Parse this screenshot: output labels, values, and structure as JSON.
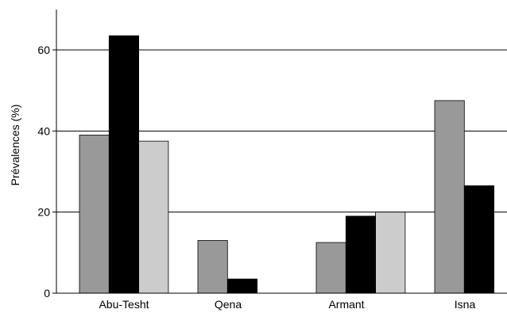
{
  "chart_data": {
    "type": "bar",
    "title": "",
    "xlabel": "",
    "ylabel": "Prévalences (%)",
    "categories": [
      "Abu-Tesht",
      "Qena",
      "Armant",
      "Isna"
    ],
    "series": [
      {
        "values": [
          39,
          13,
          12.5,
          47.5
        ],
        "color": "#999999"
      },
      {
        "values": [
          63.5,
          3.5,
          19,
          26.5
        ],
        "color": "#000000"
      },
      {
        "values": [
          37.5,
          0,
          20,
          0
        ],
        "color": "#cccccc"
      }
    ],
    "ylim": [
      0,
      70
    ],
    "yticks": [
      0,
      20,
      40,
      60
    ],
    "ytick_labels": [
      "0",
      "20",
      "40",
      "60"
    ],
    "gridlines_at": [
      20,
      40,
      60
    ],
    "grid": true,
    "legend": "none"
  }
}
